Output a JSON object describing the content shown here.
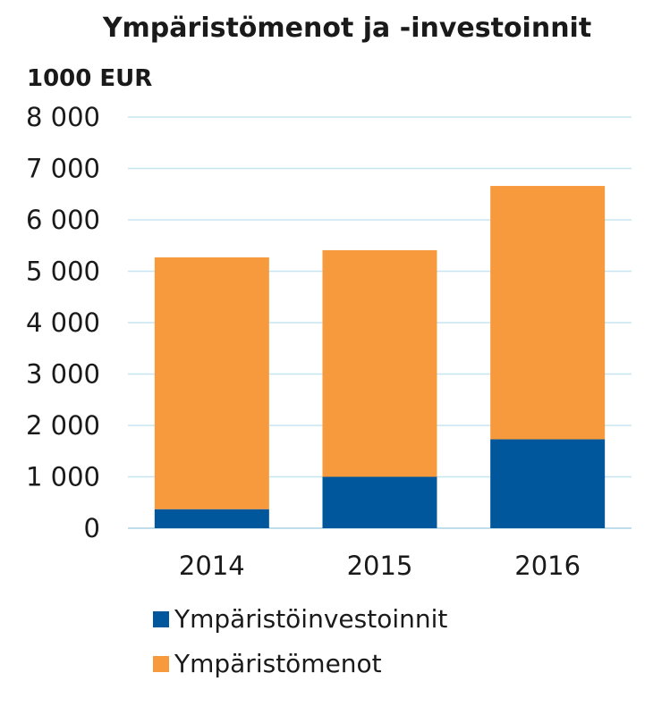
{
  "chart_data": {
    "type": "bar",
    "stacked": true,
    "title": "Ympäristömenot ja -investoinnit",
    "ylabel": "1000 EUR",
    "xlabel": "",
    "categories": [
      "2014",
      "2015",
      "2016"
    ],
    "series": [
      {
        "name": "Ympäristöinvestoinnit",
        "color": "#01579b",
        "values": [
          370,
          1000,
          1730
        ]
      },
      {
        "name": "Ympäristömenot",
        "color": "#f79a3e",
        "values": [
          4900,
          4410,
          4930
        ]
      }
    ],
    "ylim": [
      0,
      8000
    ],
    "yticks": [
      0,
      1000,
      2000,
      3000,
      4000,
      5000,
      6000,
      7000,
      8000
    ],
    "ytick_labels": [
      "0",
      "1 000",
      "2 000",
      "3 000",
      "4 000",
      "5 000",
      "6 000",
      "7 000",
      "8 000"
    ],
    "grid": true,
    "legend_position": "bottom"
  }
}
